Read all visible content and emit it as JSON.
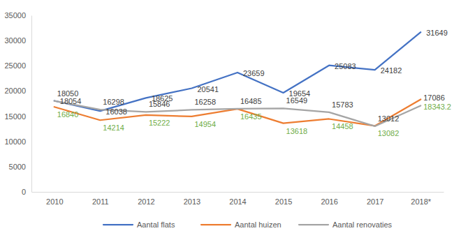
{
  "chart_data": {
    "type": "line",
    "categories": [
      "2010",
      "2011",
      "2012",
      "2013",
      "2014",
      "2015",
      "2016",
      "2017",
      "2018*"
    ],
    "series": [
      {
        "name": "Aantal flats",
        "color": "#4472c4",
        "values": [
          18054,
          16038,
          18625,
          20541,
          23659,
          19654,
          25083,
          24182,
          31649
        ]
      },
      {
        "name": "Aantal huizen",
        "color": "#ed7d31",
        "values": [
          16840,
          14214,
          15222,
          14954,
          16435,
          13618,
          14458,
          13082,
          18343.2
        ]
      },
      {
        "name": "Aantal renovaties",
        "color": "#a5a5a5",
        "values": [
          18050,
          16298,
          15846,
          16258,
          16485,
          16549,
          15783,
          13012,
          17086
        ]
      }
    ],
    "ylim": [
      0,
      35000
    ],
    "yticks": [
      0,
      5000,
      10000,
      15000,
      20000,
      25000,
      30000,
      35000
    ],
    "grid": false,
    "legend": "bottom",
    "data_labels": true,
    "line_style": "solid"
  }
}
